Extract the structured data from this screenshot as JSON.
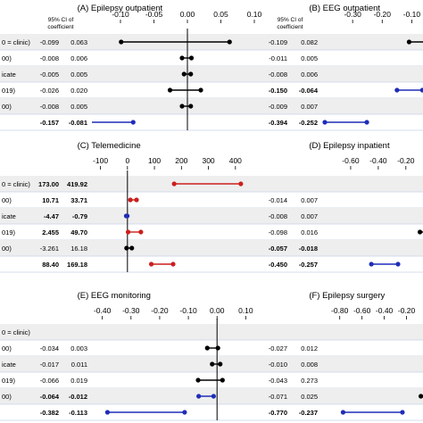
{
  "chart_data": [
    {
      "panel": "A",
      "title": "(A) Epilepsy outpatient",
      "type": "scatter",
      "header": "95% CI of coefficient",
      "xticks": [
        -0.1,
        -0.05,
        0.0,
        0.05,
        0.1
      ],
      "xtick_labels": [
        "-0.10",
        "-0.05",
        "0.00",
        "0.05",
        "0.10"
      ],
      "xlim": [
        -0.14,
        0.1
      ],
      "row_labels": [
        "0 = clinic)",
        "00)",
        "icate",
        "019)",
        "00)",
        ""
      ],
      "rows": [
        {
          "lo": "-0.099",
          "hi": "0.063",
          "lo_v": -0.099,
          "hi_v": 0.063,
          "pt": -0.018,
          "shade": true,
          "bold": false,
          "color": "#000000"
        },
        {
          "lo": "-0.008",
          "hi": "0.006",
          "lo_v": -0.008,
          "hi_v": 0.006,
          "pt": -0.001,
          "shade": false,
          "bold": false,
          "color": "#000000"
        },
        {
          "lo": "-0.005",
          "hi": "0.005",
          "lo_v": -0.005,
          "hi_v": 0.005,
          "pt": 0.0,
          "shade": true,
          "bold": false,
          "color": "#000000"
        },
        {
          "lo": "-0.026",
          "hi": "0.020",
          "lo_v": -0.026,
          "hi_v": 0.02,
          "pt": -0.003,
          "shade": false,
          "bold": false,
          "color": "#000000"
        },
        {
          "lo": "-0.008",
          "hi": "0.005",
          "lo_v": -0.008,
          "hi_v": 0.005,
          "pt": -0.0015,
          "shade": true,
          "bold": false,
          "color": "#000000"
        },
        {
          "lo": "-0.157",
          "hi": "-0.081",
          "lo_v": -0.157,
          "hi_v": -0.081,
          "pt": -0.119,
          "shade": false,
          "bold": true,
          "color": "#1f2db8"
        }
      ]
    },
    {
      "panel": "B",
      "title": "(B) EEG outpatient",
      "type": "scatter",
      "header": "95% CI of coefficient",
      "xticks": [
        -0.3,
        -0.2,
        -0.1
      ],
      "xtick_labels": [
        "-0.30",
        "-0.20",
        "-0.10"
      ],
      "xlim": [
        -0.4,
        -0.05
      ],
      "row_labels": [],
      "rows": [
        {
          "lo": "-0.109",
          "hi": "0.082",
          "lo_v": -0.109,
          "hi_v": 0.082,
          "pt": -0.013,
          "shade": true,
          "bold": false,
          "color": "#000000"
        },
        {
          "lo": "-0.011",
          "hi": "0.005",
          "lo_v": -0.011,
          "hi_v": 0.005,
          "pt": -0.003,
          "shade": false,
          "bold": false,
          "color": "#000000"
        },
        {
          "lo": "-0.008",
          "hi": "0.006",
          "lo_v": -0.008,
          "hi_v": 0.006,
          "pt": -0.001,
          "shade": true,
          "bold": false,
          "color": "#000000"
        },
        {
          "lo": "-0.150",
          "hi": "-0.064",
          "lo_v": -0.15,
          "hi_v": -0.064,
          "pt": -0.107,
          "shade": false,
          "bold": true,
          "color": "#1f2db8"
        },
        {
          "lo": "-0.009",
          "hi": "0.007",
          "lo_v": -0.009,
          "hi_v": 0.007,
          "pt": -0.001,
          "shade": true,
          "bold": false,
          "color": "#000000"
        },
        {
          "lo": "-0.394",
          "hi": "-0.252",
          "lo_v": -0.394,
          "hi_v": -0.252,
          "pt": -0.323,
          "shade": false,
          "bold": true,
          "color": "#1f2db8"
        }
      ]
    },
    {
      "panel": "C",
      "title": "(C) Telemedicine",
      "type": "scatter",
      "header": "",
      "xticks": [
        -100,
        0,
        100,
        200,
        300,
        400
      ],
      "xtick_labels": [
        "-100",
        "0",
        "100",
        "200",
        "300",
        "400"
      ],
      "xlim": [
        -125,
        470
      ],
      "row_labels": [
        "0 = clinic)",
        "00)",
        "icate",
        "019)",
        "00)",
        ""
      ],
      "rows": [
        {
          "lo": "173.00",
          "hi": "419.92",
          "lo_v": 173.0,
          "hi_v": 419.92,
          "pt": 296.46,
          "shade": true,
          "bold": true,
          "color": "#cc1f1f"
        },
        {
          "lo": "10.71",
          "hi": "33.71",
          "lo_v": 10.71,
          "hi_v": 33.71,
          "pt": 22.21,
          "shade": false,
          "bold": true,
          "color": "#cc1f1f"
        },
        {
          "lo": "-4.47",
          "hi": "-0.79",
          "lo_v": -4.47,
          "hi_v": -0.79,
          "pt": -2.63,
          "shade": true,
          "bold": true,
          "color": "#1f2db8"
        },
        {
          "lo": "2.455",
          "hi": "49.70",
          "lo_v": 2.455,
          "hi_v": 49.7,
          "pt": 26.08,
          "shade": false,
          "bold": true,
          "color": "#cc1f1f"
        },
        {
          "lo": "-3.261",
          "hi": "16.18",
          "lo_v": -3.261,
          "hi_v": 16.18,
          "pt": 6.46,
          "shade": true,
          "bold": false,
          "color": "#000000"
        },
        {
          "lo": "88.40",
          "hi": "169.18",
          "lo_v": 88.4,
          "hi_v": 169.18,
          "pt": 128.79,
          "shade": false,
          "bold": true,
          "color": "#cc1f1f"
        }
      ]
    },
    {
      "panel": "D",
      "title": "(D) Epilepsy inpatient",
      "type": "scatter",
      "header": "",
      "xticks": [
        -0.6,
        -0.4,
        -0.2
      ],
      "xtick_labels": [
        "-0.60",
        "-0.40",
        "-0.20"
      ],
      "xlim": [
        -0.8,
        -0.05
      ],
      "row_labels": [],
      "rows": [
        {
          "lo": "",
          "hi": "",
          "lo_v": null,
          "hi_v": null,
          "pt": null,
          "shade": true,
          "bold": false,
          "color": "#000000"
        },
        {
          "lo": "-0.014",
          "hi": "0.007",
          "lo_v": -0.014,
          "hi_v": 0.007,
          "pt": -0.004,
          "shade": false,
          "bold": false,
          "color": "#000000"
        },
        {
          "lo": "-0.008",
          "hi": "0.007",
          "lo_v": -0.008,
          "hi_v": 0.007,
          "pt": -0.001,
          "shade": true,
          "bold": false,
          "color": "#000000"
        },
        {
          "lo": "-0.098",
          "hi": "0.016",
          "lo_v": -0.098,
          "hi_v": 0.016,
          "pt": -0.041,
          "shade": false,
          "bold": false,
          "color": "#000000"
        },
        {
          "lo": "-0.057",
          "hi": "-0.018",
          "lo_v": -0.057,
          "hi_v": -0.018,
          "pt": -0.038,
          "shade": true,
          "bold": true,
          "color": "#1f2db8"
        },
        {
          "lo": "-0.450",
          "hi": "-0.257",
          "lo_v": -0.45,
          "hi_v": -0.257,
          "pt": -0.354,
          "shade": false,
          "bold": true,
          "color": "#1f2db8"
        }
      ]
    },
    {
      "panel": "E",
      "title": "(E) EEG monitoring",
      "type": "scatter",
      "header": "",
      "xticks": [
        -0.4,
        -0.3,
        -0.2,
        -0.1,
        0.0,
        0.1
      ],
      "xtick_labels": [
        "-0.40",
        "-0.30",
        "-0.20",
        "-0.10",
        "0.00",
        "0.10"
      ],
      "xlim": [
        -0.43,
        0.13
      ],
      "row_labels": [
        "0 = clinic)",
        "00)",
        "icate",
        "019)",
        "00)",
        ""
      ],
      "rows": [
        {
          "lo": "",
          "hi": "",
          "lo_v": null,
          "hi_v": null,
          "pt": null,
          "shade": true,
          "bold": false,
          "color": "#000000"
        },
        {
          "lo": "-0.034",
          "hi": "0.003",
          "lo_v": -0.034,
          "hi_v": 0.003,
          "pt": -0.016,
          "shade": false,
          "bold": false,
          "color": "#000000"
        },
        {
          "lo": "-0.017",
          "hi": "0.011",
          "lo_v": -0.017,
          "hi_v": 0.011,
          "pt": -0.003,
          "shade": true,
          "bold": false,
          "color": "#000000"
        },
        {
          "lo": "-0.066",
          "hi": "0.019",
          "lo_v": -0.066,
          "hi_v": 0.019,
          "pt": -0.024,
          "shade": false,
          "bold": false,
          "color": "#000000"
        },
        {
          "lo": "-0.064",
          "hi": "-0.012",
          "lo_v": -0.064,
          "hi_v": -0.012,
          "pt": -0.038,
          "shade": true,
          "bold": true,
          "color": "#1f2db8"
        },
        {
          "lo": "-0.382",
          "hi": "-0.113",
          "lo_v": -0.382,
          "hi_v": -0.113,
          "pt": -0.248,
          "shade": false,
          "bold": true,
          "color": "#1f2db8"
        }
      ]
    },
    {
      "panel": "F",
      "title": "(F) Epilepsy surgery",
      "type": "scatter",
      "header": "",
      "xticks": [
        -0.8,
        -0.6,
        -0.4,
        -0.2
      ],
      "xtick_labels": [
        "-0.80",
        "-0.60",
        "-0.40",
        "-0.20"
      ],
      "xlim": [
        -0.95,
        -0.02
      ],
      "row_labels": [],
      "rows": [
        {
          "lo": "",
          "hi": "",
          "lo_v": null,
          "hi_v": null,
          "pt": null,
          "shade": true,
          "bold": false,
          "color": "#000000"
        },
        {
          "lo": "-0.027",
          "hi": "0.012",
          "lo_v": -0.027,
          "hi_v": 0.012,
          "pt": -0.008,
          "shade": false,
          "bold": false,
          "color": "#000000"
        },
        {
          "lo": "-0.010",
          "hi": "0.008",
          "lo_v": -0.01,
          "hi_v": 0.008,
          "pt": -0.001,
          "shade": true,
          "bold": false,
          "color": "#000000"
        },
        {
          "lo": "-0.043",
          "hi": "0.273",
          "lo_v": -0.043,
          "hi_v": 0.273,
          "pt": 0.115,
          "shade": false,
          "bold": false,
          "color": "#000000"
        },
        {
          "lo": "-0.071",
          "hi": "0.025",
          "lo_v": -0.071,
          "hi_v": 0.025,
          "pt": -0.023,
          "shade": true,
          "bold": false,
          "color": "#000000"
        },
        {
          "lo": "-0.770",
          "hi": "-0.237",
          "lo_v": -0.77,
          "hi_v": -0.237,
          "pt": -0.504,
          "shade": false,
          "bold": true,
          "color": "#1f2db8"
        }
      ]
    }
  ]
}
